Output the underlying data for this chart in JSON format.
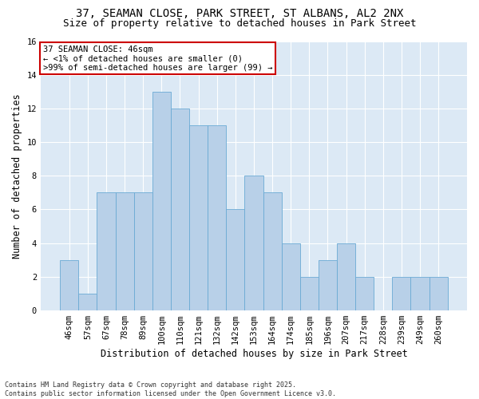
{
  "title1": "37, SEAMAN CLOSE, PARK STREET, ST ALBANS, AL2 2NX",
  "title2": "Size of property relative to detached houses in Park Street",
  "xlabel": "Distribution of detached houses by size in Park Street",
  "ylabel": "Number of detached properties",
  "bar_color": "#b8d0e8",
  "bar_edge_color": "#6aaad4",
  "background_color": "#dce9f5",
  "annotation_text": "37 SEAMAN CLOSE: 46sqm\n← <1% of detached houses are smaller (0)\n>99% of semi-detached houses are larger (99) →",
  "annotation_box_color": "#ffffff",
  "annotation_box_edge": "#cc0000",
  "categories": [
    "46sqm",
    "57sqm",
    "67sqm",
    "78sqm",
    "89sqm",
    "100sqm",
    "110sqm",
    "121sqm",
    "132sqm",
    "142sqm",
    "153sqm",
    "164sqm",
    "174sqm",
    "185sqm",
    "196sqm",
    "207sqm",
    "217sqm",
    "228sqm",
    "239sqm",
    "249sqm",
    "260sqm"
  ],
  "values": [
    3,
    1,
    7,
    7,
    7,
    13,
    12,
    11,
    11,
    6,
    8,
    7,
    4,
    2,
    3,
    4,
    2,
    0,
    2,
    2,
    2
  ],
  "ylim": [
    0,
    16
  ],
  "yticks": [
    0,
    2,
    4,
    6,
    8,
    10,
    12,
    14,
    16
  ],
  "footnote": "Contains HM Land Registry data © Crown copyright and database right 2025.\nContains public sector information licensed under the Open Government Licence v3.0.",
  "grid_color": "#ffffff",
  "title_fontsize": 10,
  "subtitle_fontsize": 9,
  "tick_fontsize": 7.5,
  "label_fontsize": 8.5,
  "annot_fontsize": 7.5,
  "footnote_fontsize": 6
}
